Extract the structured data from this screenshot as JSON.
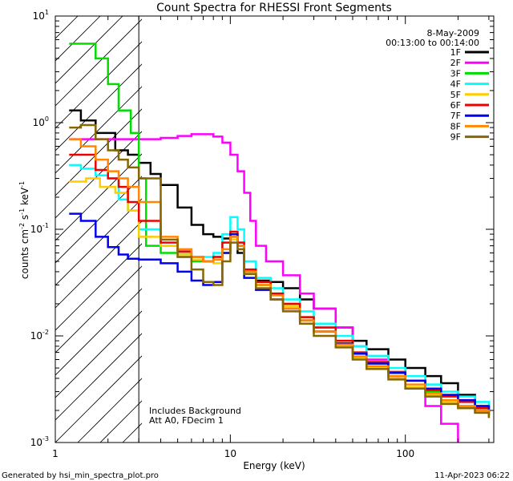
{
  "chart_data": {
    "type": "line",
    "title": "Count Spectra for RHESSI Front Segments",
    "xlabel": "Energy (keV)",
    "ylabel_parts": [
      "counts cm",
      "-2",
      " s",
      "-1",
      " keV",
      "-1"
    ],
    "x_scale": "log",
    "y_scale": "log",
    "xlim": [
      1,
      320
    ],
    "ylim": [
      0.001,
      10
    ],
    "x_ticks": [
      {
        "value": 1,
        "label": "1"
      },
      {
        "value": 10,
        "label": "10"
      },
      {
        "value": 100,
        "label": "100"
      }
    ],
    "y_ticks": [
      {
        "value": 0.001,
        "base": "10",
        "exp": "-3"
      },
      {
        "value": 0.01,
        "base": "10",
        "exp": "-2"
      },
      {
        "value": 0.1,
        "base": "10",
        "exp": "-1"
      },
      {
        "value": 1,
        "base": "10",
        "exp": "0"
      },
      {
        "value": 10,
        "base": "10",
        "exp": "1"
      }
    ],
    "hatch_region_kev": [
      1,
      3
    ],
    "legend_header": [
      "8-May-2009",
      "00:13:00 to 00:14:00"
    ],
    "annotations": [
      "Includes Background",
      "Att A0, FDecim 1"
    ],
    "series": [
      {
        "name": "1F",
        "color": "#000000",
        "points": [
          [
            1.2,
            1.3
          ],
          [
            1.4,
            1.05
          ],
          [
            1.7,
            0.8
          ],
          [
            2.2,
            0.55
          ],
          [
            2.6,
            0.5
          ],
          [
            3,
            0.42
          ],
          [
            3.5,
            0.33
          ],
          [
            4,
            0.26
          ],
          [
            5,
            0.16
          ],
          [
            6,
            0.11
          ],
          [
            7,
            0.09
          ],
          [
            8,
            0.085
          ],
          [
            9,
            0.082
          ],
          [
            10,
            0.085
          ],
          [
            11,
            0.06
          ],
          [
            12,
            0.04
          ],
          [
            14,
            0.033
          ],
          [
            17,
            0.032
          ],
          [
            20,
            0.028
          ],
          [
            25,
            0.022
          ],
          [
            30,
            0.018
          ],
          [
            40,
            0.012
          ],
          [
            50,
            0.009
          ],
          [
            60,
            0.0075
          ],
          [
            80,
            0.006
          ],
          [
            100,
            0.005
          ],
          [
            130,
            0.0042
          ],
          [
            160,
            0.0036
          ],
          [
            200,
            0.0028
          ],
          [
            250,
            0.0022
          ],
          [
            300,
            0.0018
          ]
        ]
      },
      {
        "name": "2F",
        "color": "#ff00ff",
        "points": [
          [
            1.2,
            0.7
          ],
          [
            2,
            0.7
          ],
          [
            3,
            0.7
          ],
          [
            4,
            0.72
          ],
          [
            5,
            0.75
          ],
          [
            6,
            0.78
          ],
          [
            7,
            0.78
          ],
          [
            8,
            0.74
          ],
          [
            9,
            0.65
          ],
          [
            10,
            0.5
          ],
          [
            11,
            0.35
          ],
          [
            12,
            0.22
          ],
          [
            13,
            0.12
          ],
          [
            14,
            0.07
          ],
          [
            16,
            0.05
          ],
          [
            20,
            0.037
          ],
          [
            25,
            0.025
          ],
          [
            30,
            0.018
          ],
          [
            40,
            0.012
          ],
          [
            50,
            0.008
          ],
          [
            60,
            0.006
          ],
          [
            80,
            0.0042
          ],
          [
            100,
            0.0032
          ],
          [
            130,
            0.0022
          ],
          [
            160,
            0.0015
          ],
          [
            200,
            0.001
          ]
        ]
      },
      {
        "name": "3F",
        "color": "#00dd00",
        "points": [
          [
            1.2,
            5.5
          ],
          [
            1.6,
            5.5
          ],
          [
            1.7,
            4
          ],
          [
            2,
            2.3
          ],
          [
            2.3,
            1.3
          ],
          [
            2.7,
            0.8
          ],
          [
            3,
            0.3
          ],
          [
            3.3,
            0.07
          ],
          [
            4,
            0.06
          ],
          [
            5,
            0.055
          ],
          [
            6,
            0.05
          ],
          [
            7,
            0.05
          ],
          [
            8,
            0.055
          ],
          [
            9,
            0.06
          ],
          [
            10,
            0.09
          ],
          [
            11,
            0.075
          ],
          [
            12,
            0.04
          ],
          [
            14,
            0.03
          ],
          [
            17,
            0.025
          ],
          [
            20,
            0.02
          ],
          [
            25,
            0.015
          ],
          [
            30,
            0.012
          ],
          [
            40,
            0.009
          ],
          [
            50,
            0.007
          ],
          [
            60,
            0.0055
          ],
          [
            80,
            0.0045
          ],
          [
            100,
            0.0038
          ],
          [
            130,
            0.003
          ],
          [
            160,
            0.0025
          ],
          [
            200,
            0.0022
          ],
          [
            250,
            0.002
          ],
          [
            300,
            0.0018
          ]
        ]
      },
      {
        "name": "4F",
        "color": "#00ffff",
        "points": [
          [
            1.2,
            0.4
          ],
          [
            1.4,
            0.37
          ],
          [
            1.7,
            0.32
          ],
          [
            2,
            0.3
          ],
          [
            2.3,
            0.19
          ],
          [
            2.6,
            0.15
          ],
          [
            3,
            0.1
          ],
          [
            4,
            0.07
          ],
          [
            5,
            0.06
          ],
          [
            6,
            0.055
          ],
          [
            7,
            0.055
          ],
          [
            8,
            0.06
          ],
          [
            9,
            0.09
          ],
          [
            10,
            0.13
          ],
          [
            11,
            0.1
          ],
          [
            12,
            0.05
          ],
          [
            14,
            0.035
          ],
          [
            17,
            0.028
          ],
          [
            20,
            0.022
          ],
          [
            25,
            0.017
          ],
          [
            30,
            0.013
          ],
          [
            40,
            0.01
          ],
          [
            50,
            0.008
          ],
          [
            60,
            0.0065
          ],
          [
            80,
            0.005
          ],
          [
            100,
            0.0042
          ],
          [
            130,
            0.0035
          ],
          [
            160,
            0.003
          ],
          [
            200,
            0.0027
          ],
          [
            250,
            0.0024
          ],
          [
            300,
            0.0022
          ]
        ]
      },
      {
        "name": "5F",
        "color": "#ffcc00",
        "points": [
          [
            1.2,
            0.28
          ],
          [
            1.5,
            0.3
          ],
          [
            1.8,
            0.25
          ],
          [
            2.2,
            0.22
          ],
          [
            2.6,
            0.15
          ],
          [
            3,
            0.085
          ],
          [
            4,
            0.07
          ],
          [
            5,
            0.058
          ],
          [
            6,
            0.052
          ],
          [
            7,
            0.05
          ],
          [
            8,
            0.048
          ],
          [
            9,
            0.06
          ],
          [
            10,
            0.08
          ],
          [
            11,
            0.065
          ],
          [
            12,
            0.04
          ],
          [
            14,
            0.03
          ],
          [
            17,
            0.024
          ],
          [
            20,
            0.019
          ],
          [
            25,
            0.014
          ],
          [
            30,
            0.011
          ],
          [
            40,
            0.008
          ],
          [
            50,
            0.0062
          ],
          [
            60,
            0.005
          ],
          [
            80,
            0.004
          ],
          [
            100,
            0.0033
          ],
          [
            130,
            0.0028
          ],
          [
            160,
            0.0024
          ],
          [
            200,
            0.0021
          ],
          [
            250,
            0.0019
          ],
          [
            300,
            0.0017
          ]
        ]
      },
      {
        "name": "6F",
        "color": "#ee0000",
        "points": [
          [
            1.2,
            0.5
          ],
          [
            1.4,
            0.5
          ],
          [
            1.7,
            0.36
          ],
          [
            2,
            0.3
          ],
          [
            2.3,
            0.25
          ],
          [
            2.6,
            0.18
          ],
          [
            3,
            0.12
          ],
          [
            4,
            0.075
          ],
          [
            5,
            0.062
          ],
          [
            6,
            0.055
          ],
          [
            7,
            0.05
          ],
          [
            8,
            0.055
          ],
          [
            9,
            0.075
          ],
          [
            10,
            0.095
          ],
          [
            11,
            0.075
          ],
          [
            12,
            0.042
          ],
          [
            14,
            0.032
          ],
          [
            17,
            0.025
          ],
          [
            20,
            0.02
          ],
          [
            25,
            0.015
          ],
          [
            30,
            0.012
          ],
          [
            40,
            0.009
          ],
          [
            50,
            0.007
          ],
          [
            60,
            0.0057
          ],
          [
            80,
            0.0046
          ],
          [
            100,
            0.0038
          ],
          [
            130,
            0.0031
          ],
          [
            160,
            0.0027
          ],
          [
            200,
            0.0024
          ],
          [
            250,
            0.0021
          ],
          [
            300,
            0.0019
          ]
        ]
      },
      {
        "name": "7F",
        "color": "#0000ee",
        "points": [
          [
            1.2,
            0.14
          ],
          [
            1.4,
            0.12
          ],
          [
            1.7,
            0.085
          ],
          [
            2,
            0.068
          ],
          [
            2.3,
            0.058
          ],
          [
            2.6,
            0.053
          ],
          [
            3,
            0.052
          ],
          [
            4,
            0.048
          ],
          [
            5,
            0.04
          ],
          [
            6,
            0.033
          ],
          [
            7,
            0.03
          ],
          [
            8,
            0.032
          ],
          [
            9,
            0.06
          ],
          [
            10,
            0.09
          ],
          [
            11,
            0.07
          ],
          [
            12,
            0.035
          ],
          [
            14,
            0.027
          ],
          [
            17,
            0.022
          ],
          [
            20,
            0.018
          ],
          [
            25,
            0.014
          ],
          [
            30,
            0.011
          ],
          [
            40,
            0.0085
          ],
          [
            50,
            0.0068
          ],
          [
            60,
            0.0055
          ],
          [
            80,
            0.0045
          ],
          [
            100,
            0.0038
          ],
          [
            130,
            0.0032
          ],
          [
            160,
            0.0028
          ],
          [
            200,
            0.0025
          ],
          [
            250,
            0.0022
          ],
          [
            300,
            0.002
          ]
        ]
      },
      {
        "name": "8F",
        "color": "#ff8800",
        "points": [
          [
            1.2,
            0.7
          ],
          [
            1.4,
            0.6
          ],
          [
            1.7,
            0.45
          ],
          [
            2,
            0.35
          ],
          [
            2.3,
            0.3
          ],
          [
            2.6,
            0.25
          ],
          [
            3,
            0.18
          ],
          [
            4,
            0.085
          ],
          [
            5,
            0.065
          ],
          [
            6,
            0.055
          ],
          [
            7,
            0.05
          ],
          [
            8,
            0.052
          ],
          [
            9,
            0.065
          ],
          [
            10,
            0.085
          ],
          [
            11,
            0.07
          ],
          [
            12,
            0.04
          ],
          [
            14,
            0.03
          ],
          [
            17,
            0.024
          ],
          [
            20,
            0.018
          ],
          [
            25,
            0.014
          ],
          [
            30,
            0.011
          ],
          [
            40,
            0.0083
          ],
          [
            50,
            0.0064
          ],
          [
            60,
            0.0052
          ],
          [
            80,
            0.0042
          ],
          [
            100,
            0.0035
          ],
          [
            130,
            0.0029
          ],
          [
            160,
            0.0025
          ],
          [
            200,
            0.0022
          ],
          [
            250,
            0.002
          ],
          [
            300,
            0.0018
          ]
        ]
      },
      {
        "name": "9F",
        "color": "#886600",
        "points": [
          [
            1.2,
            0.9
          ],
          [
            1.4,
            0.95
          ],
          [
            1.7,
            0.7
          ],
          [
            2,
            0.55
          ],
          [
            2.3,
            0.45
          ],
          [
            2.6,
            0.38
          ],
          [
            3,
            0.3
          ],
          [
            4,
            0.08
          ],
          [
            5,
            0.055
          ],
          [
            6,
            0.042
          ],
          [
            7,
            0.032
          ],
          [
            8,
            0.03
          ],
          [
            9,
            0.05
          ],
          [
            10,
            0.075
          ],
          [
            11,
            0.065
          ],
          [
            12,
            0.038
          ],
          [
            14,
            0.028
          ],
          [
            17,
            0.022
          ],
          [
            20,
            0.017
          ],
          [
            25,
            0.013
          ],
          [
            30,
            0.01
          ],
          [
            40,
            0.0078
          ],
          [
            50,
            0.006
          ],
          [
            60,
            0.0049
          ],
          [
            80,
            0.0039
          ],
          [
            100,
            0.0032
          ],
          [
            130,
            0.0027
          ],
          [
            160,
            0.0023
          ],
          [
            200,
            0.0021
          ],
          [
            250,
            0.0019
          ],
          [
            300,
            0.0017
          ]
        ]
      }
    ]
  },
  "footer": {
    "generated_by": "Generated by hsi_min_spectra_plot.pro",
    "timestamp": "11-Apr-2023 06:22"
  }
}
